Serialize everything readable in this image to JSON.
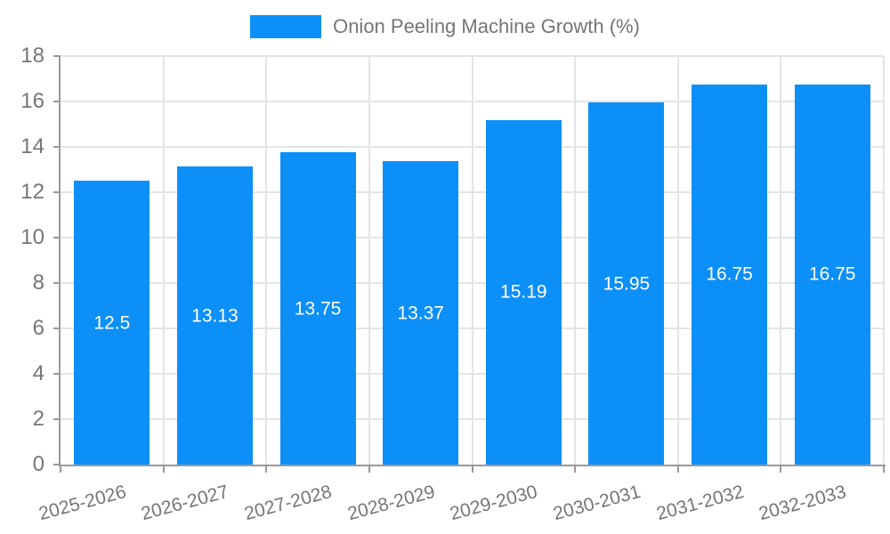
{
  "chart_data": {
    "type": "bar",
    "title": "Onion Peeling Machine Growth (%)",
    "categories": [
      "2025-2026",
      "2026-2027",
      "2027-2028",
      "2028-2029",
      "2029-2030",
      "2030-2031",
      "2031-2032",
      "2032-2033"
    ],
    "values": [
      12.5,
      13.13,
      13.75,
      13.37,
      15.19,
      15.95,
      16.75,
      16.75
    ],
    "xlabel": "",
    "ylabel": "",
    "ylim": [
      0,
      18
    ],
    "yticks": [
      0,
      2,
      4,
      6,
      8,
      10,
      12,
      14,
      16,
      18
    ],
    "grid": true,
    "legend_position": "top",
    "x_label_rotation_deg": -15,
    "colors": {
      "bar": "#0d8ff8",
      "grid": "#e4e4e4",
      "axis": "#999999",
      "tick_text": "#757575",
      "legend_text": "#757575",
      "value_label": "#ffffff",
      "background": "#ffffff"
    }
  }
}
